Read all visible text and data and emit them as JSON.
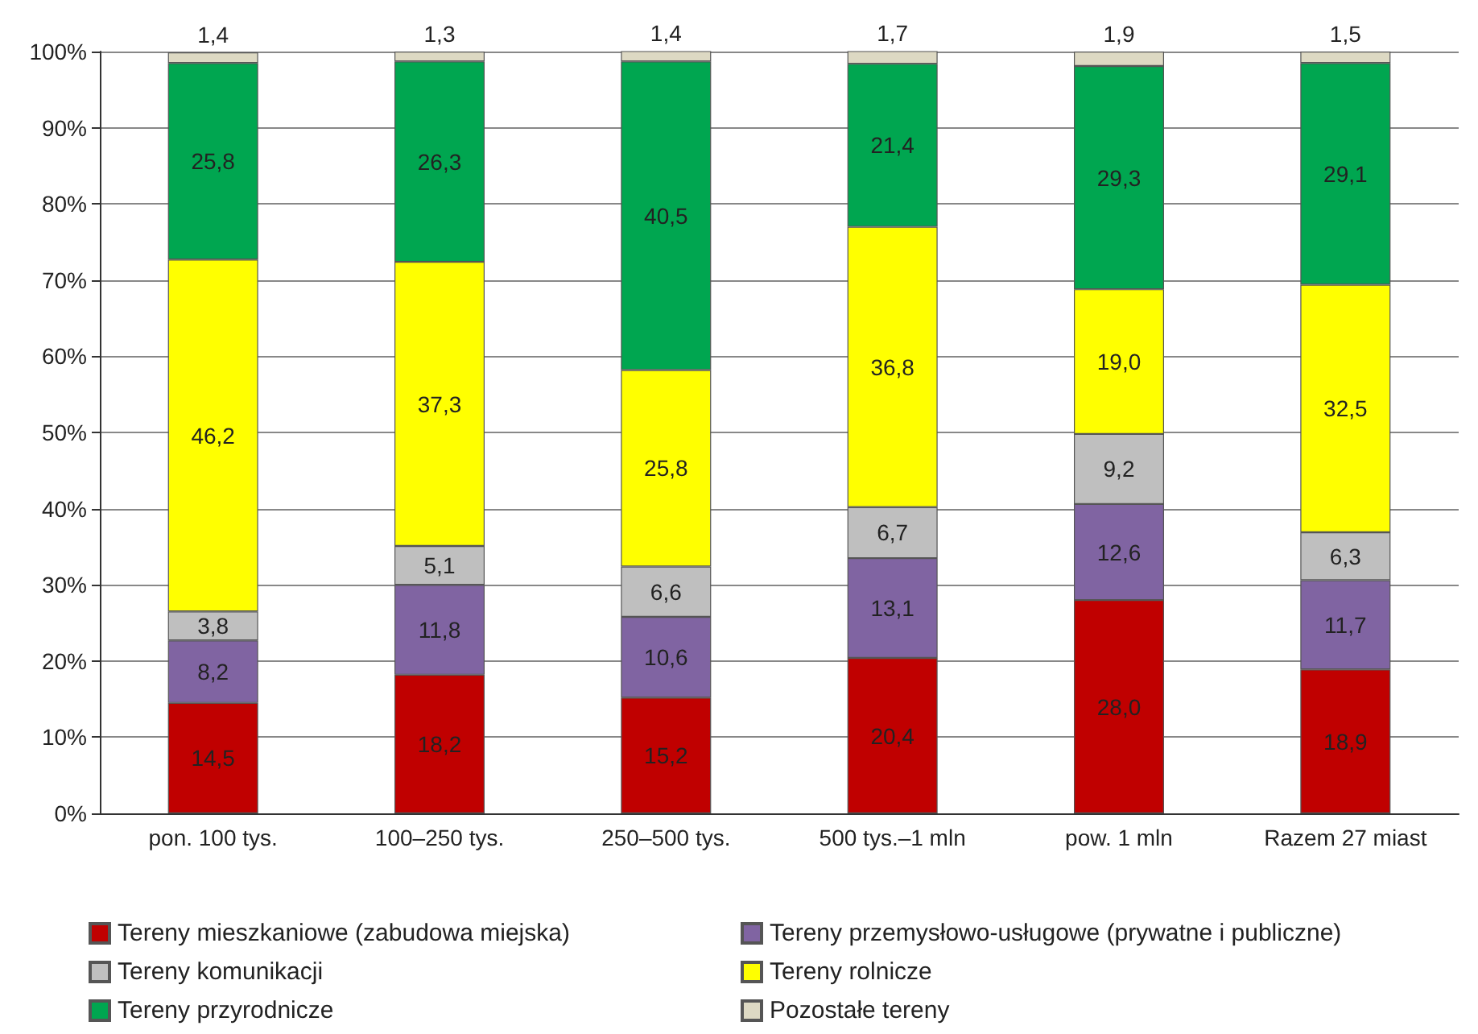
{
  "chart_data": {
    "type": "bar",
    "stacked": true,
    "categories": [
      "pon. 100 tys.",
      "100–250 tys.",
      "250–500 tys.",
      "500 tys.–1 mln",
      "pow. 1 mln",
      "Razem 27 miast"
    ],
    "series": [
      {
        "name": "Tereny mieszkaniowe (zabudowa miejska)",
        "color": "#c00000",
        "values": [
          14.5,
          18.2,
          15.2,
          20.4,
          28.0,
          18.9
        ],
        "value_labels": [
          "14,5",
          "18,2",
          "15,2",
          "20,4",
          "28,0",
          "18,9"
        ]
      },
      {
        "name": "Tereny przemysłowo-usługowe (prywatne i publiczne)",
        "color": "#8064a2",
        "values": [
          8.2,
          11.8,
          10.6,
          13.1,
          12.6,
          11.7
        ],
        "value_labels": [
          "8,2",
          "11,8",
          "10,6",
          "13,1",
          "12,6",
          "11,7"
        ]
      },
      {
        "name": "Tereny komunikacji",
        "color": "#bfbfbf",
        "values": [
          3.8,
          5.1,
          6.6,
          6.7,
          9.2,
          6.3
        ],
        "value_labels": [
          "3,8",
          "5,1",
          "6,6",
          "6,7",
          "9,2",
          "6,3"
        ]
      },
      {
        "name": "Tereny rolnicze",
        "color": "#ffff00",
        "values": [
          46.2,
          37.3,
          25.8,
          36.8,
          19.0,
          32.5
        ],
        "value_labels": [
          "46,2",
          "37,3",
          "25,8",
          "36,8",
          "19,0",
          "32,5"
        ]
      },
      {
        "name": "Tereny przyrodnicze",
        "color": "#00a650",
        "values": [
          25.8,
          26.3,
          40.5,
          21.4,
          29.3,
          29.1
        ],
        "value_labels": [
          "25,8",
          "26,3",
          "40,5",
          "21,4",
          "29,3",
          "29,1"
        ]
      },
      {
        "name": "Pozostałe tereny",
        "color": "#ddd9c3",
        "values": [
          1.4,
          1.3,
          1.4,
          1.7,
          1.9,
          1.5
        ],
        "value_labels": [
          "1,4",
          "1,3",
          "1,4",
          "1,7",
          "1,9",
          "1,5"
        ]
      }
    ],
    "ylim": [
      0,
      100
    ],
    "yticks": [
      {
        "value": 0,
        "label": "0%"
      },
      {
        "value": 10,
        "label": "10%"
      },
      {
        "value": 20,
        "label": "20%"
      },
      {
        "value": 30,
        "label": "30%"
      },
      {
        "value": 40,
        "label": "40%"
      },
      {
        "value": 50,
        "label": "50%"
      },
      {
        "value": 60,
        "label": "60%"
      },
      {
        "value": 70,
        "label": "70%"
      },
      {
        "value": 80,
        "label": "80%"
      },
      {
        "value": 90,
        "label": "90%"
      },
      {
        "value": 100,
        "label": "100%"
      }
    ],
    "grid": "y",
    "legend": "bottom"
  }
}
